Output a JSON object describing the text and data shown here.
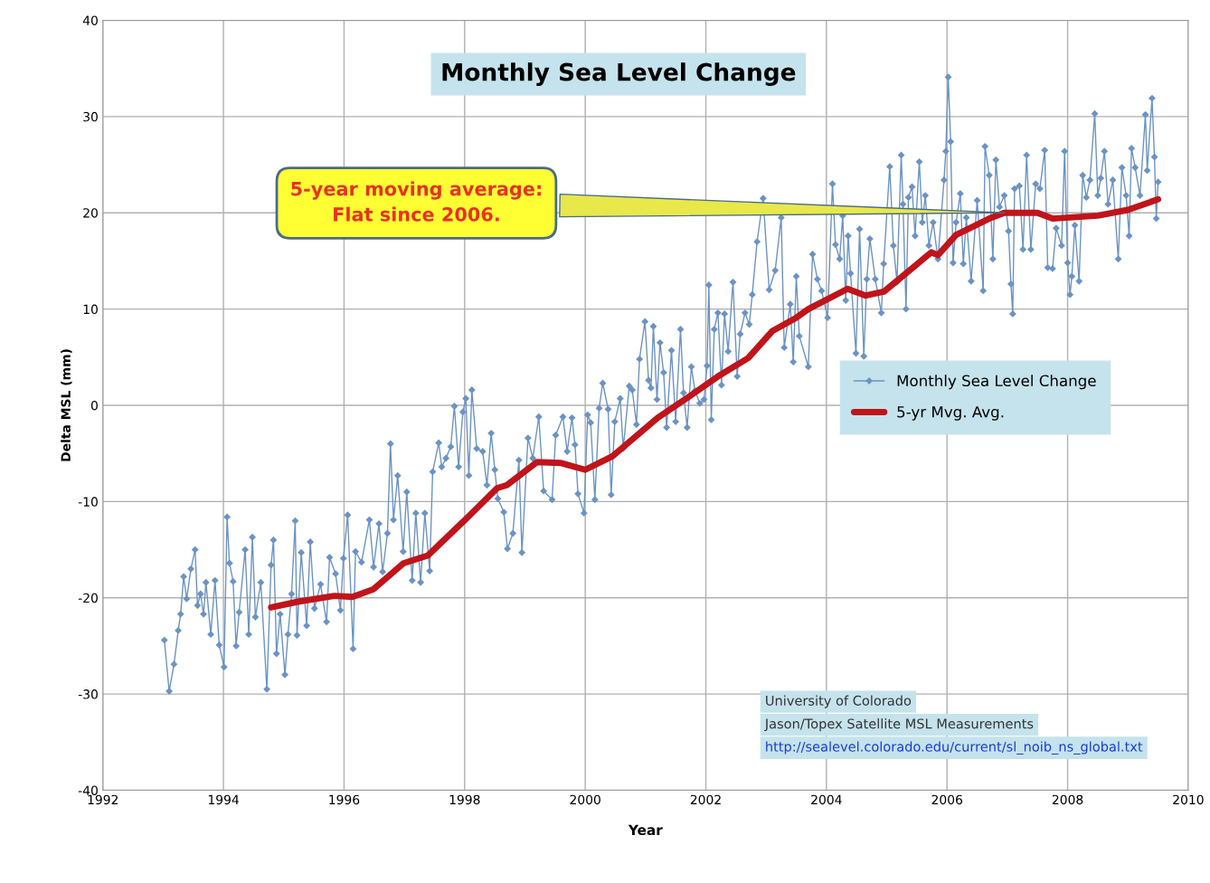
{
  "chart_data": {
    "type": "line",
    "title": "Monthly Sea Level Change",
    "xlabel": "Year",
    "ylabel": "Delta MSL (mm)",
    "xlim": [
      1992,
      2010
    ],
    "xticks": [
      1992,
      1994,
      1996,
      1998,
      2000,
      2002,
      2004,
      2006,
      2008,
      2010
    ],
    "ylim": [
      -40,
      40
    ],
    "yticks": [
      -40,
      -30,
      -20,
      -10,
      0,
      10,
      20,
      30,
      40
    ],
    "grid": true,
    "legend": "right",
    "line_style": "solid",
    "annotations": [
      {
        "text": "5-year moving average:\nFlat since 2006.",
        "x": 2007,
        "y": 20
      },
      "University of Colorado",
      "Jason/Topex Satellite MSL Measurements",
      "http://sealevel.colorado.edu/current/sl_noib_ns_global.txt"
    ],
    "series": [
      {
        "name": "Monthly Sea Level Change",
        "color": "#6b93c4",
        "marker": "diamond",
        "x": [
          1993.02,
          1993.1,
          1993.18,
          1993.25,
          1993.29,
          1993.34,
          1993.39,
          1993.46,
          1993.53,
          1993.57,
          1993.62,
          1993.67,
          1993.71,
          1993.79,
          1993.86,
          1993.93,
          1994.01,
          1994.06,
          1994.1,
          1994.16,
          1994.21,
          1994.26,
          1994.36,
          1994.42,
          1994.48,
          1994.53,
          1994.62,
          1994.72,
          1994.79,
          1994.83,
          1994.88,
          1994.94,
          1995.02,
          1995.07,
          1995.13,
          1995.19,
          1995.22,
          1995.29,
          1995.38,
          1995.44,
          1995.51,
          1995.61,
          1995.71,
          1995.76,
          1995.86,
          1995.94,
          1995.99,
          1996.06,
          1996.15,
          1996.19,
          1996.29,
          1996.42,
          1996.49,
          1996.58,
          1996.64,
          1996.72,
          1996.77,
          1996.82,
          1996.89,
          1996.98,
          1997.04,
          1997.13,
          1997.19,
          1997.27,
          1997.34,
          1997.42,
          1997.47,
          1997.57,
          1997.62,
          1997.69,
          1997.77,
          1997.83,
          1997.9,
          1997.97,
          1998.02,
          1998.07,
          1998.12,
          1998.2,
          1998.3,
          1998.37,
          1998.44,
          1998.5,
          1998.55,
          1998.65,
          1998.71,
          1998.8,
          1998.9,
          1998.95,
          1999.05,
          1999.13,
          1999.23,
          1999.31,
          1999.45,
          1999.51,
          1999.63,
          1999.7,
          1999.78,
          1999.83,
          1999.88,
          1999.98,
          2000.04,
          2000.09,
          2000.16,
          2000.23,
          2000.29,
          2000.38,
          2000.43,
          2000.49,
          2000.58,
          2000.63,
          2000.73,
          2000.78,
          2000.85,
          2000.9,
          2000.99,
          2001.05,
          2001.09,
          2001.13,
          2001.19,
          2001.24,
          2001.3,
          2001.35,
          2001.43,
          2001.5,
          2001.58,
          2001.63,
          2001.69,
          2001.76,
          2001.82,
          2001.9,
          2001.97,
          2002.02,
          2002.05,
          2002.09,
          2002.14,
          2002.2,
          2002.26,
          2002.31,
          2002.37,
          2002.45,
          2002.52,
          2002.57,
          2002.65,
          2002.72,
          2002.77,
          2002.85,
          2002.95,
          2003.05,
          2003.15,
          2003.25,
          2003.3,
          2003.4,
          2003.45,
          2003.5,
          2003.55,
          2003.7,
          2003.77,
          2003.85,
          2003.92,
          2004.02,
          2004.1,
          2004.15,
          2004.22,
          2004.27,
          2004.32,
          2004.36,
          2004.4,
          2004.49,
          2004.55,
          2004.62,
          2004.67,
          2004.72,
          2004.81,
          2004.91,
          2004.95,
          2005.05,
          2005.11,
          2005.17,
          2005.24,
          2005.27,
          2005.32,
          2005.36,
          2005.42,
          2005.47,
          2005.54,
          2005.59,
          2005.64,
          2005.7,
          2005.77,
          2005.85,
          2005.95,
          2005.98,
          2006.02,
          2006.06,
          2006.1,
          2006.15,
          2006.22,
          2006.27,
          2006.32,
          2006.4,
          2006.5,
          2006.6,
          2006.63,
          2006.7,
          2006.76,
          2006.81,
          2006.87,
          2006.95,
          2007.02,
          2007.06,
          2007.09,
          2007.12,
          2007.2,
          2007.26,
          2007.32,
          2007.39,
          2007.47,
          2007.54,
          2007.62,
          2007.67,
          2007.75,
          2007.81,
          2007.9,
          2007.95,
          2008.0,
          2008.04,
          2008.07,
          2008.12,
          2008.19,
          2008.25,
          2008.31,
          2008.37,
          2008.45,
          2008.5,
          2008.55,
          2008.61,
          2008.67,
          2008.75,
          2008.84,
          2008.9,
          2008.97,
          2009.02,
          2009.06,
          2009.12,
          2009.2,
          2009.29,
          2009.32,
          2009.4,
          2009.44,
          2009.47,
          2009.5
        ],
        "values": [
          -24.4,
          -29.7,
          -26.9,
          -23.4,
          -21.7,
          -17.8,
          -20.1,
          -17.0,
          -15.0,
          -20.8,
          -19.6,
          -21.7,
          -18.4,
          -23.8,
          -18.2,
          -24.9,
          -27.2,
          -11.6,
          -16.4,
          -18.3,
          -25.0,
          -21.5,
          -15.0,
          -23.8,
          -13.7,
          -22.0,
          -18.4,
          -29.5,
          -16.6,
          -14.0,
          -25.8,
          -21.7,
          -28.0,
          -23.8,
          -19.6,
          -12.0,
          -23.9,
          -15.3,
          -22.9,
          -14.2,
          -21.1,
          -18.6,
          -22.5,
          -15.8,
          -17.5,
          -21.3,
          -15.9,
          -11.4,
          -25.3,
          -15.2,
          -16.3,
          -11.9,
          -16.8,
          -12.3,
          -17.3,
          -13.3,
          -4.0,
          -11.9,
          -7.3,
          -15.2,
          -9.0,
          -18.2,
          -11.2,
          -18.4,
          -11.2,
          -17.2,
          -6.9,
          -3.9,
          -6.4,
          -5.5,
          -4.3,
          -0.1,
          -6.4,
          -0.7,
          0.7,
          -7.3,
          1.6,
          -4.5,
          -4.8,
          -8.3,
          -2.9,
          -6.7,
          -9.7,
          -11.1,
          -14.9,
          -13.3,
          -5.7,
          -15.3,
          -3.4,
          -5.5,
          -1.2,
          -8.9,
          -9.8,
          -3.1,
          -1.2,
          -4.8,
          -1.3,
          -4.1,
          -9.2,
          -11.2,
          -1.0,
          -1.8,
          -9.8,
          -0.3,
          2.3,
          -0.4,
          -9.3,
          -1.7,
          0.7,
          -4.5,
          2.0,
          1.6,
          -2.0,
          4.8,
          8.7,
          2.6,
          1.8,
          8.2,
          0.6,
          6.5,
          3.4,
          -2.3,
          5.7,
          -1.7,
          7.9,
          1.3,
          -2.3,
          4.0,
          1.5,
          0.2,
          0.6,
          4.1,
          12.5,
          -1.5,
          7.9,
          9.6,
          2.1,
          9.5,
          5.6,
          12.8,
          3.0,
          7.4,
          9.6,
          8.4,
          11.5,
          17.0,
          21.5,
          12.0,
          14.0,
          19.5,
          6.0,
          10.5,
          4.5,
          13.4,
          7.2,
          4.0,
          15.7,
          13.1,
          11.9,
          9.1,
          23.0,
          16.7,
          15.2,
          19.7,
          10.9,
          17.6,
          13.7,
          5.4,
          18.3,
          5.1,
          13.1,
          17.3,
          13.1,
          9.6,
          14.7,
          24.8,
          16.6,
          12.8,
          26.0,
          20.9,
          10.0,
          21.6,
          22.7,
          17.6,
          25.3,
          19.0,
          21.8,
          16.6,
          19.0,
          15.2,
          23.4,
          26.4,
          34.1,
          27.4,
          14.8,
          19.0,
          22.0,
          14.7,
          19.5,
          12.9,
          21.3,
          11.9,
          26.9,
          23.9,
          15.2,
          25.5,
          20.6,
          21.8,
          18.1,
          12.6,
          9.5,
          22.5,
          22.8,
          16.2,
          26.0,
          16.2,
          23.0,
          22.5,
          26.5,
          14.3,
          14.2,
          18.4,
          16.6,
          26.4,
          14.8,
          11.5,
          13.4,
          18.7,
          12.9,
          23.9,
          21.6,
          23.4,
          30.3,
          21.8,
          23.6,
          26.4,
          20.9,
          23.4,
          15.2,
          24.7,
          21.8,
          17.6,
          26.7,
          24.7,
          21.8,
          30.2,
          24.4,
          31.9,
          25.8,
          19.4,
          23.2
        ]
      },
      {
        "name": "5-yr Mvg. Avg.",
        "color": "#c0141a",
        "marker": "none",
        "x": [
          1994.79,
          1995.24,
          1995.84,
          1996.14,
          1996.49,
          1996.99,
          1997.39,
          1997.99,
          1998.54,
          1998.7,
          1999.2,
          1999.6,
          2000.0,
          2000.45,
          2001.2,
          2001.7,
          2002.2,
          2002.7,
          2003.1,
          2003.5,
          2003.7,
          2004.35,
          2004.65,
          2004.95,
          2005.74,
          2005.85,
          2006.15,
          2006.7,
          2006.95,
          2007.5,
          2007.75,
          2008.5,
          2009.0,
          2009.5
        ],
        "values": [
          -21.0,
          -20.4,
          -19.8,
          -19.9,
          -19.1,
          -16.4,
          -15.6,
          -12.0,
          -8.6,
          -8.3,
          -5.9,
          -6.0,
          -6.7,
          -5.3,
          -1.3,
          0.8,
          3.0,
          4.9,
          7.7,
          9.1,
          10.0,
          12.1,
          11.4,
          11.8,
          15.9,
          15.6,
          17.7,
          19.4,
          20.0,
          20.0,
          19.4,
          19.7,
          20.3,
          21.4
        ]
      }
    ]
  }
}
